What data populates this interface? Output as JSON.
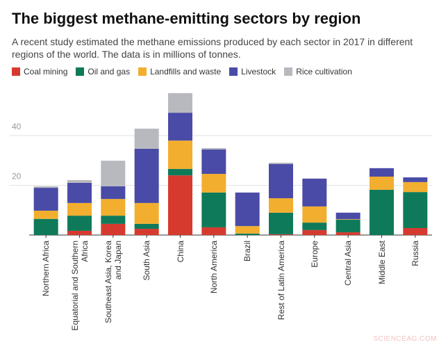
{
  "chart_data": {
    "type": "stacked_bar",
    "title": "The biggest methane-emitting sectors by region",
    "subtitle": "A recent study estimated the methane emissions produced by each sector in 2017 in different regions of the world. The data is in millions of tonnes.",
    "watermark": "SCIENCEAG.COM",
    "categories": [
      "Northern Africa",
      "Equatorial and Southern Africa",
      "Southeast Asia, Korea and Japan",
      "South Asia",
      "China",
      "North America",
      "Brazil",
      "Rest of Latin America",
      "Europe",
      "Central Asia",
      "Middle East",
      "Russia"
    ],
    "series": [
      {
        "name": "Coal mining",
        "color": "#d63a2f",
        "values": [
          0,
          1.7,
          4.5,
          2.5,
          24,
          3.1,
          0,
          0.3,
          2,
          1.1,
          0,
          2.8
        ]
      },
      {
        "name": "Oil and gas",
        "color": "#0f7a5a",
        "values": [
          6.5,
          6.1,
          3.3,
          2,
          2.6,
          14,
          0.6,
          8.7,
          3,
          5.1,
          18.2,
          14.5
        ]
      },
      {
        "name": "Landfills and waste",
        "color": "#f2ae2e",
        "values": [
          3.3,
          5.1,
          6.7,
          8.4,
          11.4,
          7.5,
          3,
          5.8,
          6.5,
          0.2,
          5.3,
          4
        ]
      },
      {
        "name": "Livestock",
        "color": "#4a4ba6",
        "values": [
          9.2,
          8.1,
          5.1,
          21.8,
          11.2,
          9.8,
          13.5,
          13.8,
          11.2,
          2.6,
          3.4,
          1.9
        ]
      },
      {
        "name": "Rice cultivation",
        "color": "#b8b9bf",
        "values": [
          0.6,
          1.1,
          10.3,
          8.1,
          7.9,
          0.6,
          0,
          0.5,
          0,
          0,
          0,
          0
        ]
      }
    ],
    "ylim": [
      0,
      60
    ],
    "yticks": [
      20,
      40
    ],
    "grid": true
  }
}
